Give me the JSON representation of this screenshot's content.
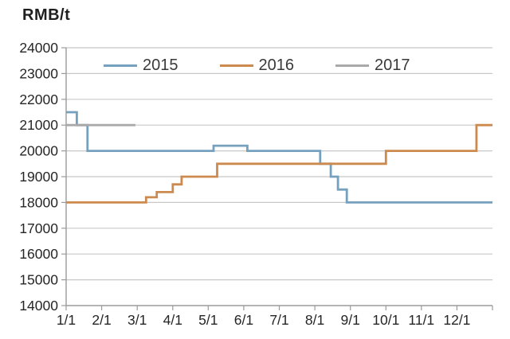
{
  "title": "RMB/t",
  "chart_data": {
    "type": "line",
    "subtype": "step",
    "title": "RMB/t",
    "ylabel": "RMB/t",
    "xlabel": "",
    "ylim": [
      14000,
      24000
    ],
    "ytick_interval": 1000,
    "ytick_labels": [
      "14000",
      "15000",
      "16000",
      "17000",
      "18000",
      "19000",
      "20000",
      "21000",
      "22000",
      "23000",
      "24000"
    ],
    "xtick_labels": [
      "1/1",
      "2/1",
      "3/1",
      "4/1",
      "5/1",
      "6/1",
      "7/1",
      "8/1",
      "9/1",
      "10/1",
      "11/1",
      "12/1"
    ],
    "x_unit": "month (0 = Jan 1, 12 = Dec 31)",
    "grid": "horizontal",
    "legend_position": "top-center",
    "grid_color": "#c8c8c8",
    "axis_color": "#9b9b9b",
    "text_color": "#262626",
    "series": [
      {
        "name": "2015",
        "color": "#75A0BE",
        "unit": "RMB/t",
        "segments_month_start_end_value": [
          [
            0,
            0.3,
            21500
          ],
          [
            0.3,
            0.6,
            21000
          ],
          [
            0.6,
            4.15,
            20000
          ],
          [
            4.15,
            5.1,
            20200
          ],
          [
            5.1,
            7.15,
            20000
          ],
          [
            7.15,
            7.45,
            19500
          ],
          [
            7.45,
            7.65,
            19000
          ],
          [
            7.65,
            7.9,
            18500
          ],
          [
            7.9,
            12,
            18000
          ]
        ]
      },
      {
        "name": "2016",
        "color": "#CC8A4E",
        "unit": "RMB/t",
        "segments_month_start_end_value": [
          [
            0,
            2.25,
            18000
          ],
          [
            2.25,
            2.55,
            18200
          ],
          [
            2.55,
            3.0,
            18400
          ],
          [
            3.0,
            3.25,
            18700
          ],
          [
            3.25,
            4.25,
            19000
          ],
          [
            4.25,
            9.0,
            19500
          ],
          [
            9.0,
            11.55,
            20000
          ],
          [
            11.55,
            12,
            21000
          ]
        ]
      },
      {
        "name": "2017",
        "color": "#A9A9A9",
        "unit": "RMB/t",
        "segments_month_start_end_value": [
          [
            0,
            1.95,
            21000
          ]
        ]
      }
    ]
  }
}
